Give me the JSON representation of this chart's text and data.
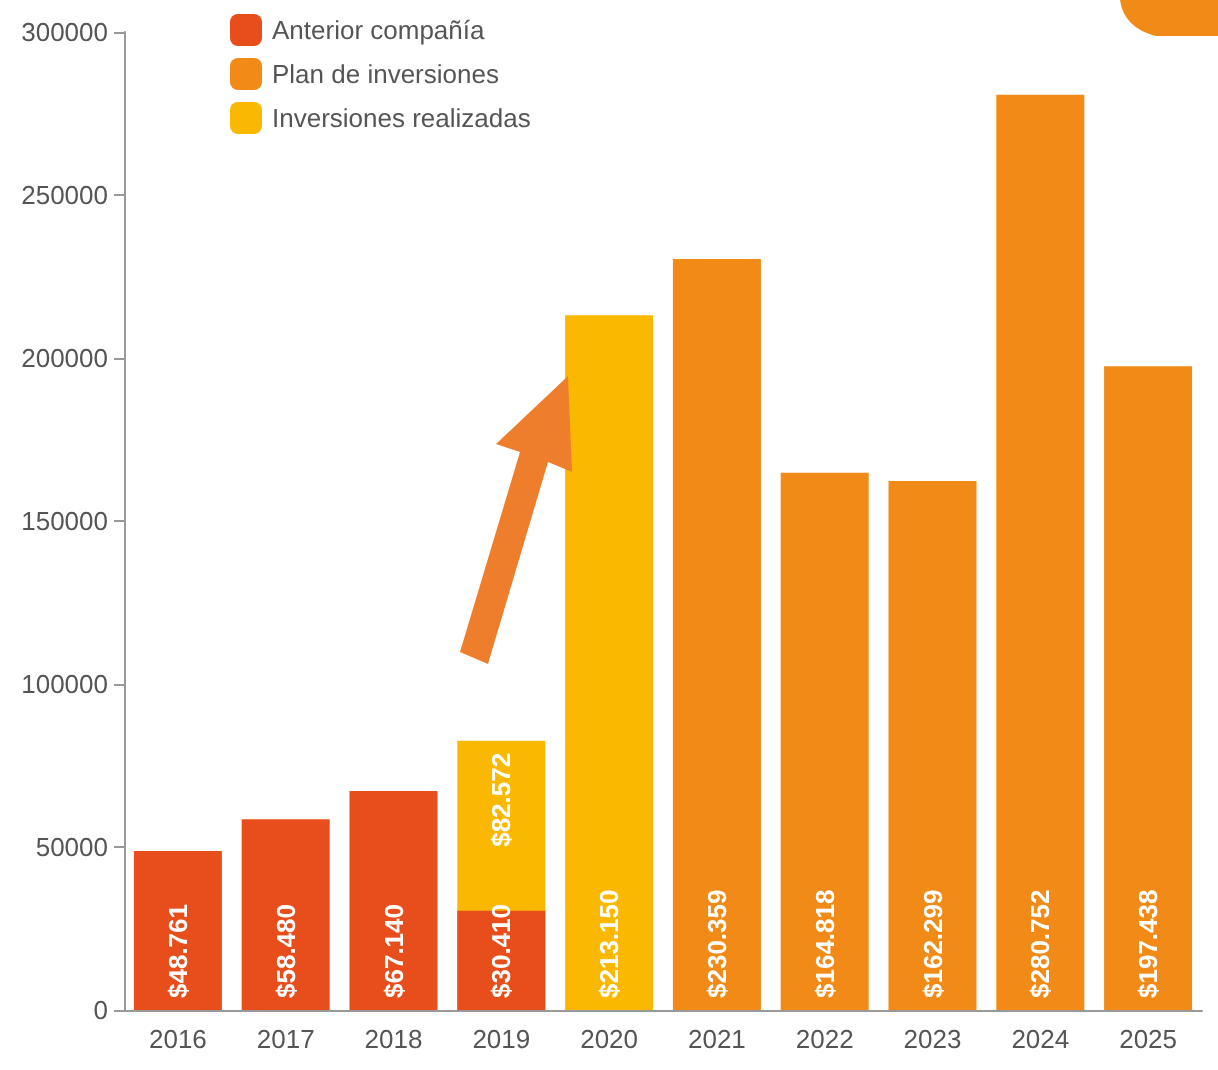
{
  "chart_data": {
    "type": "bar",
    "categories": [
      "2016",
      "2017",
      "2018",
      "2019",
      "2020",
      "2021",
      "2022",
      "2023",
      "2024",
      "2025"
    ],
    "series": [
      {
        "name": "Anterior compañía",
        "color": "#e84e1b",
        "values": [
          48761,
          58480,
          67140,
          30410,
          null,
          null,
          null,
          null,
          null,
          null
        ],
        "value_labels": [
          "$48.761",
          "$58.480",
          "$67.140",
          "$30.410",
          null,
          null,
          null,
          null,
          null,
          null
        ]
      },
      {
        "name": "Plan de inversiones",
        "color": "#f28a17",
        "values": [
          null,
          null,
          null,
          null,
          null,
          230359,
          164818,
          162299,
          280752,
          197438
        ],
        "value_labels": [
          null,
          null,
          null,
          null,
          null,
          "$230.359",
          "$164.818",
          "$162.299",
          "$280.752",
          "$197.438"
        ]
      },
      {
        "name": "Inversiones realizadas",
        "color": "#fbb800",
        "values": [
          null,
          null,
          null,
          82572,
          213150,
          null,
          null,
          null,
          null,
          null
        ],
        "value_labels": [
          null,
          null,
          null,
          "$82.572",
          "$213.150",
          null,
          null,
          null,
          null,
          null
        ]
      }
    ],
    "ylim": [
      0,
      300000
    ],
    "yticks": [
      0,
      50000,
      100000,
      150000,
      200000,
      250000,
      300000
    ],
    "grid": false,
    "legend": "top left"
  }
}
